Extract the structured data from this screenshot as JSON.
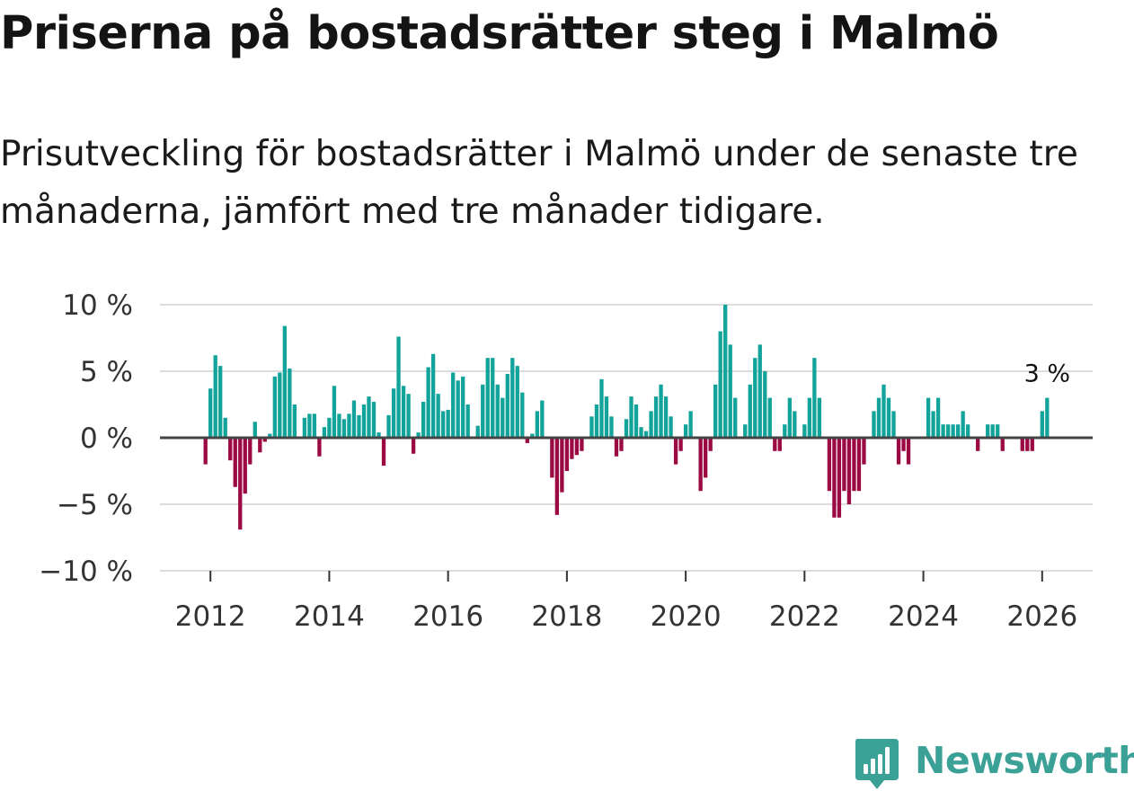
{
  "title": "Priserna på bostadsrätter steg i Malmö",
  "subtitle": "Prisutveckling för bostadsrätter i Malmö under de senaste tre månaderna, jämfört med tre månader tidigare.",
  "brand": {
    "name": "Newsworthy"
  },
  "colors": {
    "positive": "#12a39a",
    "negative": "#9b0a43",
    "grid": "#dddddd",
    "zero_line": "#444444",
    "brand": "#3ba196"
  },
  "chart_data": {
    "type": "bar",
    "title": "Priserna på bostadsrätter steg i Malmö",
    "xlabel": "",
    "ylabel": "",
    "x_start": 2011.9167,
    "x_step_years": 0.0833333,
    "ylim": [
      -10,
      10
    ],
    "xlim": [
      2011.15,
      2026.85
    ],
    "y_ticks": [
      10,
      5,
      0,
      -5,
      -10
    ],
    "y_tick_labels": [
      "10 %",
      "5 %",
      "0 %",
      "−5 %",
      "−10 %"
    ],
    "x_ticks": [
      2012,
      2014,
      2016,
      2018,
      2020,
      2022,
      2024,
      2026
    ],
    "x_tick_labels": [
      "2012",
      "2014",
      "2016",
      "2018",
      "2020",
      "2022",
      "2024",
      "2026"
    ],
    "last_value_label": "3 %",
    "values": [
      -2,
      3.7,
      6.2,
      5.4,
      1.5,
      -1.7,
      -3.7,
      -6.9,
      -4.2,
      -2,
      1.2,
      -1.1,
      -0.3,
      0.3,
      4.6,
      4.9,
      8.4,
      5.2,
      2.5,
      0,
      1.5,
      1.8,
      1.8,
      -1.4,
      0.8,
      1.5,
      3.9,
      1.8,
      1.4,
      1.8,
      2.8,
      1.7,
      2.5,
      3.1,
      2.7,
      0.4,
      -2.1,
      1.7,
      3.7,
      7.6,
      3.9,
      3.3,
      -1.2,
      0.4,
      2.7,
      5.3,
      6.3,
      3.3,
      2.0,
      2.1,
      4.9,
      4.3,
      4.6,
      2.5,
      0,
      0.9,
      4.0,
      6.0,
      6.0,
      4.0,
      3.0,
      4.8,
      6.0,
      5.4,
      3.4,
      -0.4,
      0.3,
      2.0,
      2.8,
      0,
      -3.0,
      -5.8,
      -4.1,
      -2.5,
      -1.6,
      -1.3,
      -1.0,
      0,
      1.6,
      2.5,
      4.4,
      3.1,
      1.6,
      -1.4,
      -1.0,
      1.4,
      3.1,
      2.5,
      0.8,
      0.5,
      2.0,
      3.1,
      4.0,
      3.1,
      1.6,
      -2.0,
      -1.0,
      1.0,
      2.0,
      0,
      -4.0,
      -3.0,
      -1.0,
      4.0,
      8.0,
      10.0,
      7.0,
      3.0,
      0,
      1.0,
      4.0,
      6.0,
      7.0,
      5.0,
      3.0,
      -1.0,
      -1.0,
      1.0,
      3.0,
      2.0,
      0,
      1.0,
      3.0,
      6.0,
      3.0,
      0,
      -4.0,
      -6.0,
      -6.0,
      -4.0,
      -5.0,
      -4.0,
      -4.0,
      -2.0,
      0,
      2.0,
      3.0,
      4.0,
      3.0,
      2.0,
      -2.0,
      -1.0,
      -2.0,
      0,
      0,
      0,
      3.0,
      2.0,
      3.0,
      1.0,
      1.0,
      1.0,
      1.0,
      2.0,
      1.0,
      0,
      -1.0,
      0,
      1.0,
      1.0,
      1.0,
      -1.0,
      0,
      0,
      0,
      -1.0,
      -1.0,
      -1.0,
      0,
      2.0,
      3.0
    ]
  }
}
